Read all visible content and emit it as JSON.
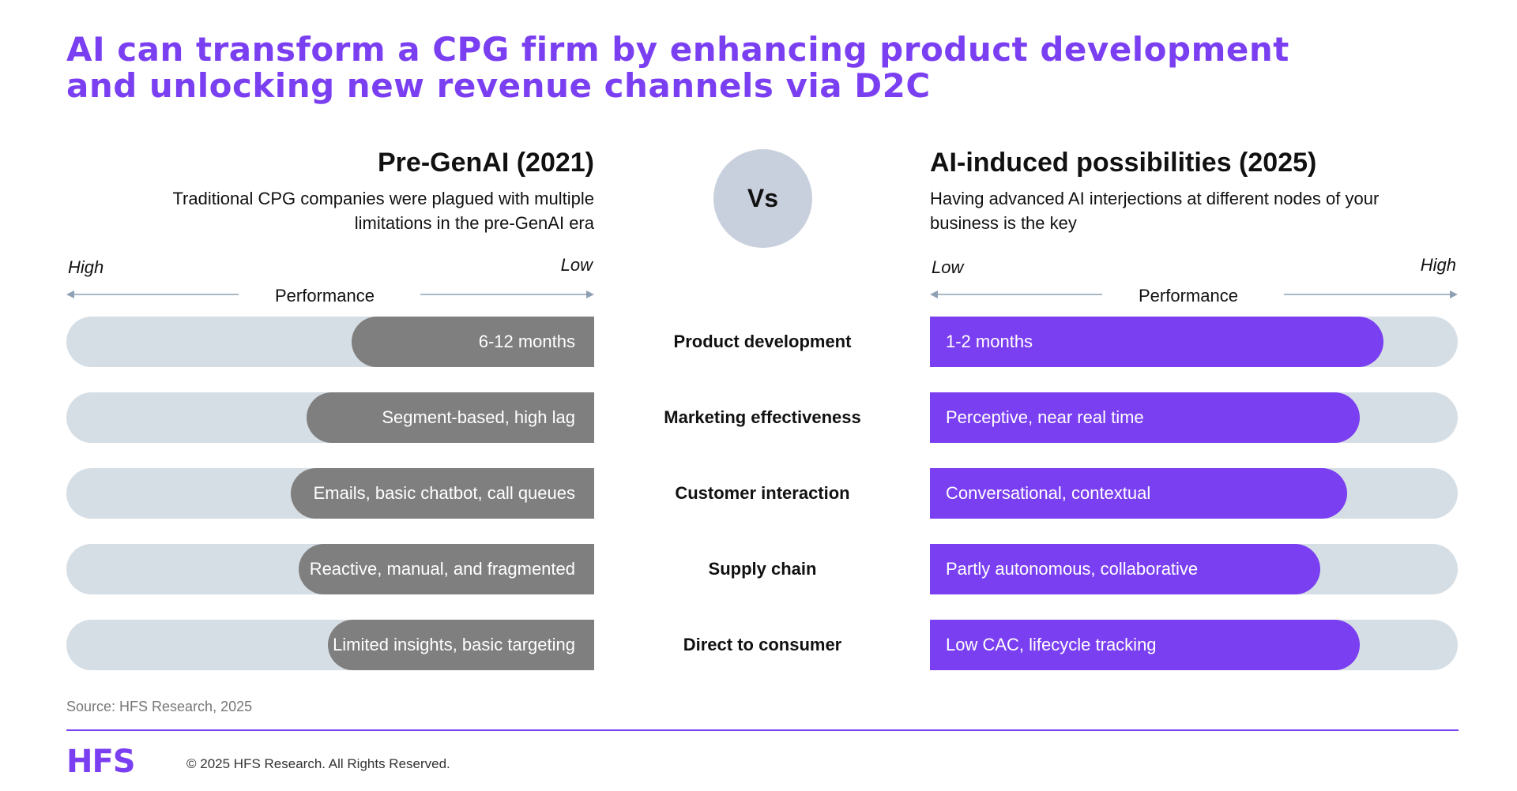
{
  "title": {
    "line1": "AI can transform a CPG firm by enhancing product development",
    "line2": "and unlocking new revenue channels via D2C"
  },
  "left_header": {
    "title": "Pre-GenAI (2021)",
    "subtitle": "Traditional CPG companies were plagued with multiple limitations in the pre-GenAI era"
  },
  "right_header": {
    "title": "AI-induced possibilities (2025)",
    "subtitle": "Having advanced AI interjections at different nodes of your business is the key"
  },
  "vs_label": "Vs",
  "left_axis": {
    "start_label": "High",
    "end_label": "Low",
    "label": "Performance"
  },
  "right_axis": {
    "start_label": "Low",
    "end_label": "High",
    "label": "Performance"
  },
  "colors": {
    "accent": "#7b3ff2",
    "left_bar": "#7f7f7f",
    "track": "#d6dee5",
    "vs_circle": "#c9d0dd"
  },
  "rows": [
    {
      "category": "Product development",
      "left_text": "6-12 months",
      "left_level": 0.46,
      "right_text": "1-2 months",
      "right_level": 0.86
    },
    {
      "category": "Marketing effectiveness",
      "left_text": "Segment-based, high lag",
      "left_level": 0.545,
      "right_text": "Perceptive, near real time",
      "right_level": 0.815
    },
    {
      "category": "Customer interaction",
      "left_text": "Emails, basic chatbot, call queues",
      "left_level": 0.575,
      "right_text": "Conversational, contextual",
      "right_level": 0.79
    },
    {
      "category": "Supply chain",
      "left_text": "Reactive, manual, and fragmented",
      "left_level": 0.56,
      "right_text": "Partly autonomous, collaborative",
      "right_level": 0.74
    },
    {
      "category": "Direct to consumer",
      "left_text": "Limited insights, basic targeting",
      "left_level": 0.505,
      "right_text": "Low CAC, lifecycle tracking",
      "right_level": 0.815
    }
  ],
  "source": "Source: HFS Research, 2025",
  "footer": {
    "logo": "HFS",
    "copyright": "© 2025 HFS Research. All Rights Reserved."
  }
}
